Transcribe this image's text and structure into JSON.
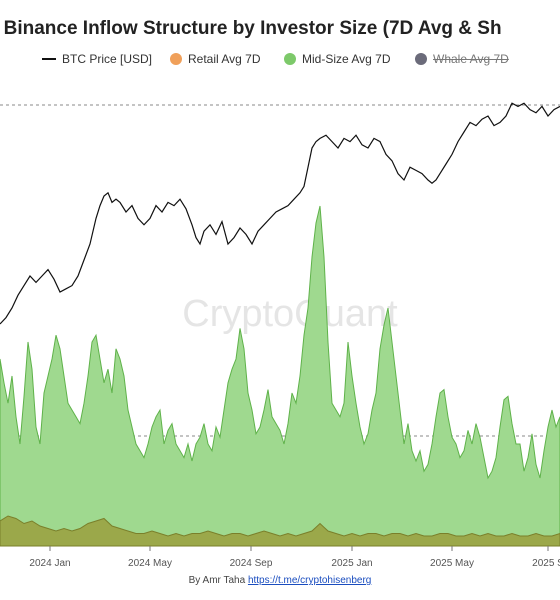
{
  "title": "] Binance Inflow Structure by Investor Size (7D Avg & Sh",
  "legend": [
    {
      "label": "BTC Price [USD]",
      "color": "#111111",
      "kind": "line"
    },
    {
      "label": "Retail Avg 7D",
      "color": "#f0a05a",
      "kind": "dot"
    },
    {
      "label": "Mid-Size Avg 7D",
      "color": "#7dc96a",
      "kind": "dot"
    },
    {
      "label": "Whale Avg 7D",
      "color": "#6b6b7a",
      "kind": "dot",
      "hidden": true
    }
  ],
  "watermark": "CryptoQuant",
  "credit": {
    "prefix": "By Amr Taha ",
    "link": "https://t.me/cryptohisenberg"
  },
  "chart_data": {
    "type": "area",
    "x_ticks": [
      "2024 Jan",
      "2024 May",
      "2024 Sep",
      "2025 Jan",
      "2025 May",
      "2025 S"
    ],
    "grid": "dashed horizontal",
    "series": [
      {
        "name": "Mid-Size Avg 7D",
        "type": "area",
        "x": [
          0,
          4,
          8,
          12,
          16,
          20,
          24,
          28,
          32,
          36,
          40,
          44,
          48,
          52,
          56,
          60,
          64,
          68,
          72,
          76,
          80,
          84,
          88,
          92,
          96,
          100,
          104,
          108,
          112,
          116,
          120,
          124,
          128,
          132,
          136,
          140,
          144,
          148,
          152,
          156,
          160,
          164,
          168,
          172,
          176,
          180,
          184,
          188,
          192,
          196,
          200,
          204,
          208,
          212,
          216,
          220,
          224,
          228,
          232,
          236,
          240,
          244,
          248,
          252,
          256,
          260,
          264,
          268,
          272,
          276,
          280,
          284,
          288,
          292,
          296,
          300,
          304,
          308,
          312,
          316,
          320,
          324,
          328,
          332,
          336,
          340,
          344,
          348,
          352,
          356,
          360,
          364,
          368,
          372,
          376,
          380,
          384,
          388,
          392,
          396,
          400,
          404,
          408,
          412,
          416,
          420,
          424,
          428,
          432,
          436,
          440,
          444,
          448,
          452,
          456,
          460,
          464,
          468,
          472,
          476,
          480,
          484,
          488,
          492,
          496,
          500,
          504,
          508,
          512,
          516,
          520,
          524,
          528,
          532,
          536,
          540,
          544,
          548,
          552,
          556,
          560
        ],
        "values": [
          0.55,
          0.48,
          0.42,
          0.5,
          0.38,
          0.3,
          0.44,
          0.6,
          0.52,
          0.35,
          0.3,
          0.45,
          0.5,
          0.55,
          0.62,
          0.58,
          0.5,
          0.42,
          0.4,
          0.38,
          0.36,
          0.42,
          0.5,
          0.6,
          0.62,
          0.55,
          0.48,
          0.52,
          0.45,
          0.58,
          0.55,
          0.5,
          0.4,
          0.35,
          0.3,
          0.28,
          0.26,
          0.3,
          0.35,
          0.38,
          0.4,
          0.3,
          0.34,
          0.36,
          0.3,
          0.28,
          0.26,
          0.3,
          0.25,
          0.3,
          0.32,
          0.36,
          0.3,
          0.28,
          0.35,
          0.32,
          0.4,
          0.48,
          0.52,
          0.55,
          0.64,
          0.58,
          0.45,
          0.4,
          0.33,
          0.35,
          0.4,
          0.46,
          0.38,
          0.36,
          0.34,
          0.3,
          0.36,
          0.45,
          0.42,
          0.5,
          0.62,
          0.7,
          0.85,
          0.95,
          1.0,
          0.85,
          0.6,
          0.42,
          0.4,
          0.38,
          0.42,
          0.6,
          0.5,
          0.42,
          0.35,
          0.3,
          0.33,
          0.4,
          0.45,
          0.58,
          0.65,
          0.7,
          0.6,
          0.5,
          0.4,
          0.3,
          0.36,
          0.28,
          0.25,
          0.28,
          0.22,
          0.24,
          0.3,
          0.38,
          0.45,
          0.46,
          0.38,
          0.32,
          0.3,
          0.26,
          0.28,
          0.34,
          0.3,
          0.36,
          0.32,
          0.26,
          0.2,
          0.22,
          0.26,
          0.35,
          0.43,
          0.44,
          0.36,
          0.3,
          0.3,
          0.22,
          0.26,
          0.33,
          0.24,
          0.2,
          0.28,
          0.35,
          0.4,
          0.35,
          0.38
        ]
      },
      {
        "name": "Retail Avg 7D",
        "type": "area",
        "x": [
          0,
          8,
          16,
          24,
          32,
          40,
          48,
          56,
          64,
          72,
          80,
          88,
          96,
          104,
          112,
          120,
          128,
          136,
          144,
          152,
          160,
          168,
          176,
          184,
          192,
          200,
          208,
          216,
          224,
          232,
          240,
          248,
          256,
          264,
          272,
          280,
          288,
          296,
          304,
          312,
          320,
          328,
          336,
          344,
          352,
          360,
          368,
          376,
          384,
          392,
          400,
          408,
          416,
          424,
          432,
          440,
          448,
          456,
          464,
          472,
          480,
          488,
          496,
          504,
          512,
          520,
          528,
          536,
          544,
          552,
          560
        ],
        "values": [
          0.1,
          0.12,
          0.11,
          0.09,
          0.1,
          0.08,
          0.07,
          0.06,
          0.07,
          0.06,
          0.07,
          0.09,
          0.1,
          0.11,
          0.08,
          0.07,
          0.06,
          0.05,
          0.05,
          0.06,
          0.05,
          0.04,
          0.05,
          0.04,
          0.05,
          0.05,
          0.06,
          0.05,
          0.04,
          0.05,
          0.05,
          0.04,
          0.05,
          0.06,
          0.05,
          0.04,
          0.05,
          0.04,
          0.05,
          0.06,
          0.09,
          0.06,
          0.05,
          0.04,
          0.05,
          0.04,
          0.05,
          0.05,
          0.04,
          0.05,
          0.05,
          0.04,
          0.05,
          0.04,
          0.04,
          0.05,
          0.05,
          0.04,
          0.04,
          0.05,
          0.04,
          0.05,
          0.04,
          0.04,
          0.05,
          0.04,
          0.04,
          0.05,
          0.04,
          0.04,
          0.05
        ]
      },
      {
        "name": "BTC Price [USD]",
        "type": "line",
        "x": [
          0,
          6,
          12,
          18,
          24,
          30,
          36,
          42,
          48,
          54,
          60,
          66,
          72,
          78,
          84,
          90,
          96,
          100,
          104,
          108,
          112,
          116,
          120,
          126,
          132,
          138,
          144,
          150,
          156,
          162,
          168,
          174,
          180,
          186,
          192,
          196,
          200,
          204,
          210,
          216,
          222,
          228,
          234,
          240,
          246,
          252,
          258,
          264,
          270,
          276,
          282,
          288,
          294,
          300,
          304,
          308,
          312,
          316,
          320,
          326,
          332,
          338,
          344,
          350,
          356,
          362,
          368,
          374,
          380,
          386,
          392,
          398,
          404,
          410,
          416,
          422,
          428,
          432,
          436,
          440,
          446,
          452,
          458,
          464,
          470,
          476,
          482,
          488,
          494,
          500,
          506,
          512,
          518,
          524,
          530,
          536,
          542,
          548,
          554,
          560
        ],
        "values": [
          0.35,
          0.37,
          0.4,
          0.44,
          0.47,
          0.5,
          0.48,
          0.5,
          0.52,
          0.49,
          0.45,
          0.46,
          0.47,
          0.5,
          0.55,
          0.6,
          0.68,
          0.72,
          0.75,
          0.76,
          0.73,
          0.74,
          0.73,
          0.7,
          0.72,
          0.68,
          0.66,
          0.68,
          0.72,
          0.7,
          0.73,
          0.72,
          0.74,
          0.71,
          0.66,
          0.62,
          0.6,
          0.64,
          0.66,
          0.63,
          0.67,
          0.6,
          0.62,
          0.65,
          0.63,
          0.6,
          0.64,
          0.66,
          0.68,
          0.7,
          0.71,
          0.72,
          0.74,
          0.76,
          0.78,
          0.84,
          0.9,
          0.92,
          0.93,
          0.94,
          0.92,
          0.9,
          0.93,
          0.92,
          0.94,
          0.91,
          0.9,
          0.93,
          0.92,
          0.88,
          0.86,
          0.82,
          0.8,
          0.84,
          0.83,
          0.82,
          0.8,
          0.79,
          0.8,
          0.82,
          0.85,
          0.88,
          0.92,
          0.95,
          0.98,
          0.97,
          0.99,
          1.0,
          0.97,
          0.98,
          1.0,
          1.04,
          1.03,
          1.04,
          1.02,
          1.01,
          1.03,
          1.0,
          1.02,
          1.03
        ]
      }
    ]
  }
}
